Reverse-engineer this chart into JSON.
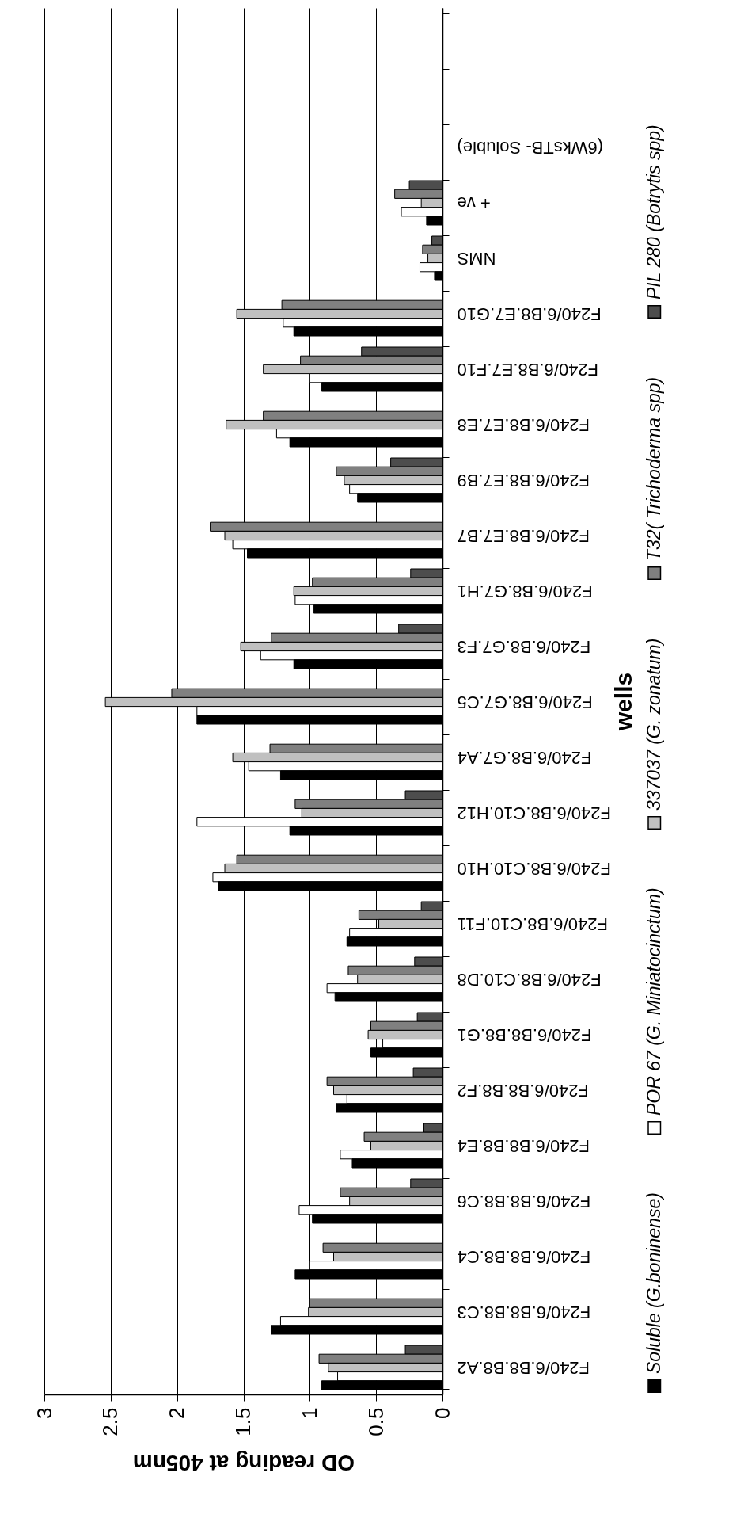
{
  "chart_data": {
    "type": "bar",
    "orientation": "horizontal",
    "xlabel": "OD reading at 405nm",
    "ylabel": "wells",
    "categories": [
      null,
      null,
      "(6WksTB- Soluble)",
      "+ ve",
      "NMS",
      "F240/6.B8.E7.G10",
      "F240/6.B8.E7.F10",
      "F240/6.B8.E7.E8",
      "F240/6.B8.E7.B9",
      "F240/6.B8.E7.B7",
      "F240/6.B8.G7.H1",
      "F240/6.B8.G7.F3",
      "F240/6.B8.G7.C5",
      "F240/6.B8.G7.A4",
      "F240/6.B8.C10.H12",
      "F240/6.B8.C10.H10",
      "F240/6.B8.C10.F11",
      "F240/6.B8.C10.D8",
      "F240/6.B8.B8.G1",
      "F240/6.B8.B8.F2",
      "F240/6.B8.B8.E4",
      "F240/6.B8.B8.C6",
      "F240/6.B8.B8.C4",
      "F240/6.B8.B8.C3",
      "F240/6.B8.B8.A2"
    ],
    "series": [
      {
        "name": "PIL 280 (Botrytis spp)",
        "color": "#4d4d4d",
        "values": [
          null,
          null,
          null,
          0.25,
          0.08,
          null,
          0.61,
          null,
          0.39,
          null,
          0.24,
          0.33,
          null,
          null,
          0.28,
          null,
          0.16,
          0.21,
          0.19,
          0.22,
          0.14,
          0.24,
          null,
          null,
          0.28
        ]
      },
      {
        "name": "T32( Trichoderma spp)",
        "color": "#808080",
        "values": [
          null,
          null,
          null,
          0.36,
          0.15,
          1.21,
          1.07,
          1.35,
          0.8,
          1.75,
          0.98,
          1.29,
          2.04,
          1.3,
          1.11,
          1.55,
          0.63,
          0.71,
          0.54,
          0.87,
          0.59,
          0.77,
          0.9,
          1.0,
          0.93
        ]
      },
      {
        "name": "337037 (G. zonatum)",
        "color": "#c0c0c0",
        "values": [
          null,
          null,
          null,
          0.16,
          0.11,
          1.55,
          1.35,
          1.63,
          0.74,
          1.64,
          1.12,
          1.52,
          2.54,
          1.58,
          1.06,
          1.64,
          0.48,
          0.64,
          0.56,
          0.82,
          0.54,
          0.7,
          0.82,
          1.01,
          0.86
        ]
      },
      {
        "name": "POR 67 (G. Miniatocinctum)",
        "color": "#ffffff",
        "values": [
          null,
          null,
          null,
          0.31,
          0.17,
          1.2,
          1.0,
          1.25,
          0.7,
          1.58,
          1.11,
          1.37,
          1.85,
          1.46,
          1.85,
          1.73,
          0.7,
          0.87,
          0.45,
          0.72,
          0.77,
          1.08,
          1.0,
          1.22,
          0.79
        ]
      },
      {
        "name": "Soluble (G.boninense)",
        "color": "#000000",
        "values": [
          null,
          null,
          null,
          0.12,
          0.06,
          1.12,
          0.91,
          1.15,
          0.64,
          1.47,
          0.97,
          1.12,
          1.85,
          1.22,
          1.15,
          1.69,
          0.72,
          0.81,
          0.54,
          0.8,
          0.68,
          0.98,
          1.11,
          1.29,
          0.91
        ]
      }
    ],
    "xlim": [
      3,
      0
    ],
    "xticks": [
      3,
      2.5,
      2,
      1.5,
      1,
      0.5,
      0
    ],
    "grid": "x",
    "legend": "right"
  }
}
